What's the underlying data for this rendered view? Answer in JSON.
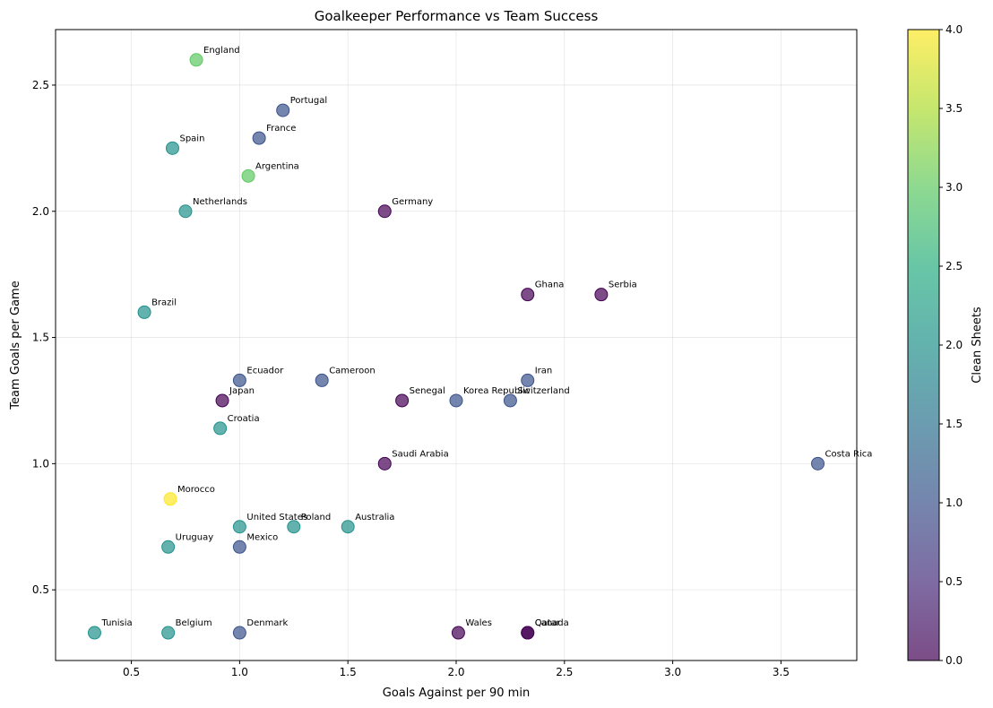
{
  "chart_data": {
    "type": "scatter",
    "title": "Goalkeeper Performance vs Team Success",
    "xlabel": "Goals Against per 90 min",
    "ylabel": "Team Goals per Game",
    "xlim": [
      0.15,
      3.85
    ],
    "ylim": [
      0.22,
      2.72
    ],
    "xticks": [
      0.5,
      1.0,
      1.5,
      2.0,
      2.5,
      3.0,
      3.5
    ],
    "xtick_labels": [
      "0.5",
      "1.0",
      "1.5",
      "2.0",
      "2.5",
      "3.0",
      "3.5"
    ],
    "yticks": [
      0.5,
      1.0,
      1.5,
      2.0,
      2.5
    ],
    "ytick_labels": [
      "0.5",
      "1.0",
      "1.5",
      "2.0",
      "2.5"
    ],
    "grid": true,
    "colorbar": {
      "label": "Clean Sheets",
      "range": [
        0,
        4
      ],
      "colormap": "viridis",
      "ticks": [
        0.0,
        0.5,
        1.0,
        1.5,
        2.0,
        2.5,
        3.0,
        3.5,
        4.0
      ],
      "tick_labels": [
        "0.0",
        "0.5",
        "1.0",
        "1.5",
        "2.0",
        "2.5",
        "3.0",
        "3.5",
        "4.0"
      ]
    },
    "points": [
      {
        "label": "England",
        "x": 0.8,
        "y": 2.6,
        "clean_sheets": 3
      },
      {
        "label": "Portugal",
        "x": 1.2,
        "y": 2.4,
        "clean_sheets": 1
      },
      {
        "label": "France",
        "x": 1.09,
        "y": 2.29,
        "clean_sheets": 1
      },
      {
        "label": "Spain",
        "x": 0.69,
        "y": 2.25,
        "clean_sheets": 2
      },
      {
        "label": "Argentina",
        "x": 1.04,
        "y": 2.14,
        "clean_sheets": 3
      },
      {
        "label": "Netherlands",
        "x": 0.75,
        "y": 2.0,
        "clean_sheets": 2
      },
      {
        "label": "Germany",
        "x": 1.67,
        "y": 2.0,
        "clean_sheets": 0
      },
      {
        "label": "Ghana",
        "x": 2.33,
        "y": 1.67,
        "clean_sheets": 0
      },
      {
        "label": "Serbia",
        "x": 2.67,
        "y": 1.67,
        "clean_sheets": 0
      },
      {
        "label": "Brazil",
        "x": 0.56,
        "y": 1.6,
        "clean_sheets": 2
      },
      {
        "label": "Ecuador",
        "x": 1.0,
        "y": 1.33,
        "clean_sheets": 1
      },
      {
        "label": "Cameroon",
        "x": 1.38,
        "y": 1.33,
        "clean_sheets": 1
      },
      {
        "label": "Iran",
        "x": 2.33,
        "y": 1.33,
        "clean_sheets": 1
      },
      {
        "label": "Japan",
        "x": 0.92,
        "y": 1.25,
        "clean_sheets": 0
      },
      {
        "label": "Senegal",
        "x": 1.75,
        "y": 1.25,
        "clean_sheets": 0
      },
      {
        "label": "Korea Republic",
        "x": 2.0,
        "y": 1.25,
        "clean_sheets": 1
      },
      {
        "label": "Switzerland",
        "x": 2.25,
        "y": 1.25,
        "clean_sheets": 1
      },
      {
        "label": "Croatia",
        "x": 0.91,
        "y": 1.14,
        "clean_sheets": 2
      },
      {
        "label": "Saudi Arabia",
        "x": 1.67,
        "y": 1.0,
        "clean_sheets": 0
      },
      {
        "label": "Costa Rica",
        "x": 3.67,
        "y": 1.0,
        "clean_sheets": 1
      },
      {
        "label": "Morocco",
        "x": 0.68,
        "y": 0.86,
        "clean_sheets": 4
      },
      {
        "label": "United States",
        "x": 1.0,
        "y": 0.75,
        "clean_sheets": 2
      },
      {
        "label": "Poland",
        "x": 1.25,
        "y": 0.75,
        "clean_sheets": 2
      },
      {
        "label": "Australia",
        "x": 1.5,
        "y": 0.75,
        "clean_sheets": 2
      },
      {
        "label": "Uruguay",
        "x": 0.67,
        "y": 0.67,
        "clean_sheets": 2
      },
      {
        "label": "Mexico",
        "x": 1.0,
        "y": 0.67,
        "clean_sheets": 1
      },
      {
        "label": "Tunisia",
        "x": 0.33,
        "y": 0.33,
        "clean_sheets": 2
      },
      {
        "label": "Belgium",
        "x": 0.67,
        "y": 0.33,
        "clean_sheets": 2
      },
      {
        "label": "Denmark",
        "x": 1.0,
        "y": 0.33,
        "clean_sheets": 1
      },
      {
        "label": "Wales",
        "x": 2.01,
        "y": 0.33,
        "clean_sheets": 0
      },
      {
        "label": "Canada",
        "x": 2.33,
        "y": 0.33,
        "clean_sheets": 0
      },
      {
        "label": "Qatar",
        "x": 2.33,
        "y": 0.33,
        "clean_sheets": 0
      }
    ]
  }
}
